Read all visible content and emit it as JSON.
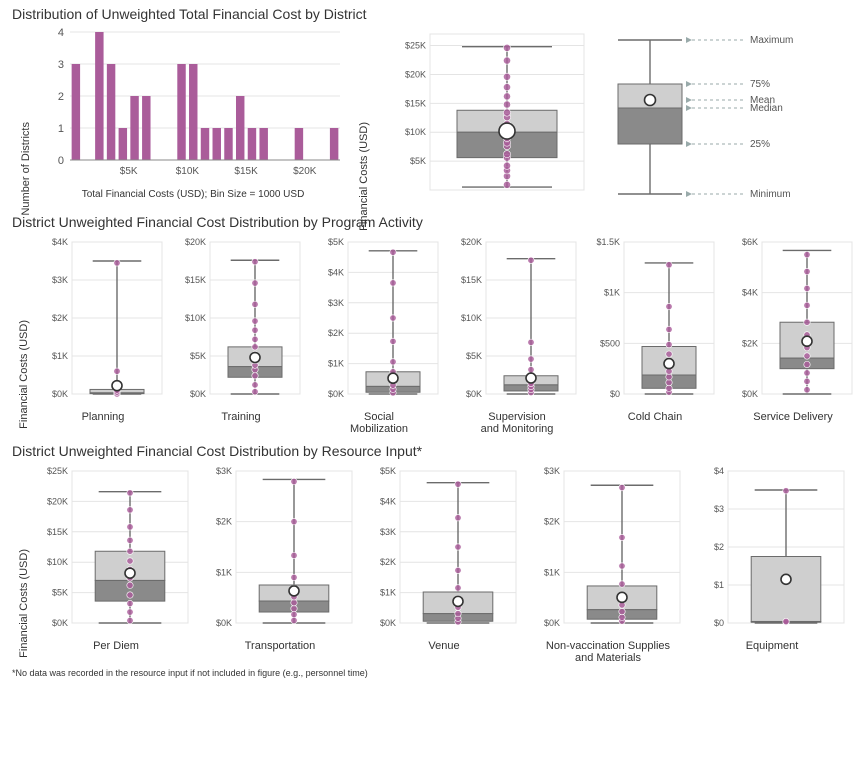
{
  "colors": {
    "accent": "#aa5c9a",
    "box_light": "#cfcfcf",
    "box_dark": "#8a8a8a",
    "whisker": "#6b6b6b",
    "axis": "#888",
    "grid": "#e4e4e4",
    "text": "#555"
  },
  "section1": {
    "title": "Distribution of Unweighted Total Financial Cost by District",
    "histogram": {
      "type": "bar",
      "ylabel": "Number of Districts",
      "xlabel": "Total Financial Costs (USD); Bin Size = 1000 USD",
      "x_ticks": [
        "",
        "$5K",
        "",
        "$10K",
        "",
        "$15K",
        "",
        "$20K",
        ""
      ],
      "y_ticks": [
        0,
        1,
        2,
        3,
        4
      ],
      "ylim": [
        0,
        4
      ],
      "values": [
        3,
        0,
        4,
        3,
        1,
        2,
        2,
        0,
        0,
        3,
        3,
        1,
        1,
        1,
        2,
        1,
        1,
        0,
        0,
        1,
        0,
        0,
        1
      ],
      "bar_color": "#aa5c9a",
      "bar_width": 0.72
    },
    "big_box": {
      "type": "boxplot",
      "ylabel": "Financial Costs (USD)",
      "y_ticks": [
        "$5K",
        "$10K",
        "$15K",
        "$20K",
        "$25K"
      ],
      "ylim": [
        0,
        27000
      ],
      "q1": 5600,
      "median": 10000,
      "q3": 13800,
      "whisker_lo": 500,
      "whisker_hi": 24800,
      "mean": 10200,
      "points": [
        900,
        2400,
        3400,
        4200,
        5600,
        6200,
        7600,
        8200,
        9000,
        10000,
        10800,
        11400,
        12600,
        13400,
        14800,
        16200,
        17800,
        19600,
        22400,
        24600
      ]
    },
    "legend": {
      "labels": {
        "max": "Maximum",
        "q75": "75%",
        "mean": "Mean",
        "median": "Median",
        "q25": "25%",
        "min": "Minimum"
      }
    }
  },
  "section2": {
    "title": "District Unweighted Financial Cost Distribution by Program Activity",
    "ylabel": "Financial Costs (USD)",
    "panels": [
      {
        "name": "Planning",
        "yticks": [
          "$0K",
          "$1K",
          "$2K",
          "$3K",
          "$4K"
        ],
        "ylim": [
          0,
          4000
        ],
        "q1": 10,
        "median": 30,
        "q3": 120,
        "lo": 0,
        "hi": 3500,
        "mean": 220,
        "points": [
          0,
          50,
          100,
          220,
          600,
          3450
        ]
      },
      {
        "name": "Training",
        "yticks": [
          "$0K",
          "$5K",
          "$10K",
          "$15K",
          "$20K"
        ],
        "ylim": [
          0,
          20000
        ],
        "q1": 2200,
        "median": 3600,
        "q3": 6200,
        "lo": 0,
        "hi": 17600,
        "mean": 4800,
        "points": [
          300,
          1200,
          2400,
          3200,
          3800,
          4400,
          5200,
          6200,
          7200,
          8400,
          9600,
          11800,
          14600,
          17400
        ]
      },
      {
        "name": "Social\nMobilization",
        "yticks": [
          "$0K",
          "$1K",
          "$2K",
          "$3K",
          "$4K",
          "$5K"
        ],
        "ylim": [
          0,
          5200
        ],
        "q1": 60,
        "median": 260,
        "q3": 760,
        "lo": 0,
        "hi": 4900,
        "mean": 540,
        "points": [
          40,
          160,
          300,
          520,
          760,
          1100,
          1800,
          2600,
          3800,
          4850
        ]
      },
      {
        "name": "Supervision\nand Monitoring",
        "yticks": [
          "$0K",
          "$5K",
          "$10K",
          "$15K",
          "$20K"
        ],
        "ylim": [
          0,
          20000
        ],
        "q1": 400,
        "median": 1200,
        "q3": 2400,
        "lo": 0,
        "hi": 17800,
        "mean": 2100,
        "points": [
          200,
          600,
          1000,
          1400,
          1800,
          2400,
          3200,
          4600,
          6800,
          17600
        ]
      },
      {
        "name": "Cold Chain",
        "yticks": [
          "$0",
          "$500",
          "$1K",
          "$1.5K"
        ],
        "ylim": [
          0,
          1600
        ],
        "q1": 60,
        "median": 200,
        "q3": 500,
        "lo": 0,
        "hi": 1380,
        "mean": 320,
        "points": [
          20,
          60,
          120,
          180,
          240,
          320,
          420,
          520,
          680,
          920,
          1360
        ]
      },
      {
        "name": "Service Delivery",
        "yticks": [
          "$0K",
          "$2K",
          "$4K",
          "$6K"
        ],
        "ylim": [
          0,
          7200
        ],
        "q1": 1200,
        "median": 1700,
        "q3": 3400,
        "lo": 0,
        "hi": 6800,
        "mean": 2500,
        "points": [
          200,
          600,
          1000,
          1400,
          1800,
          2200,
          2800,
          3400,
          4200,
          5000,
          5800,
          6600
        ]
      }
    ]
  },
  "section3": {
    "title": "District Unweighted Financial Cost Distribution by Resource Input*",
    "ylabel": "Financial Costs (USD)",
    "panels": [
      {
        "name": "Per Diem",
        "yticks": [
          "$0K",
          "$5K",
          "$10K",
          "$15K",
          "$20K",
          "$25K"
        ],
        "ylim": [
          0,
          25000
        ],
        "q1": 3600,
        "median": 7000,
        "q3": 11800,
        "lo": 0,
        "hi": 21600,
        "mean": 8200,
        "points": [
          400,
          1800,
          3200,
          4600,
          6200,
          7400,
          8800,
          10200,
          11800,
          13600,
          15800,
          18600,
          21400
        ]
      },
      {
        "name": "Transportation",
        "yticks": [
          "$0K",
          "$1K",
          "$2K",
          "$3K"
        ],
        "ylim": [
          0,
          3600
        ],
        "q1": 260,
        "median": 520,
        "q3": 900,
        "lo": 0,
        "hi": 3400,
        "mean": 760,
        "points": [
          60,
          200,
          340,
          480,
          620,
          820,
          1080,
          1600,
          2400,
          3350
        ]
      },
      {
        "name": "Venue",
        "yticks": [
          "$0K",
          "$1K",
          "$2K",
          "$3K",
          "$4K",
          "$5K"
        ],
        "ylim": [
          0,
          5200
        ],
        "q1": 60,
        "median": 320,
        "q3": 1060,
        "lo": 0,
        "hi": 4800,
        "mean": 740,
        "points": [
          40,
          160,
          320,
          540,
          820,
          1200,
          1800,
          2600,
          3600,
          4750
        ]
      },
      {
        "name": "Non-vaccination Supplies\nand Materials",
        "yticks": [
          "$0K",
          "$1K",
          "$2K",
          "$3K"
        ],
        "ylim": [
          0,
          3200
        ],
        "q1": 80,
        "median": 280,
        "q3": 780,
        "lo": 0,
        "hi": 2900,
        "mean": 540,
        "points": [
          40,
          120,
          240,
          380,
          560,
          820,
          1200,
          1800,
          2850
        ]
      },
      {
        "name": "Equipment",
        "yticks": [
          "$0",
          "$1",
          "$2",
          "$3",
          "$4"
        ],
        "ylim": [
          0,
          4
        ],
        "q1": 0.02,
        "median": 0.04,
        "q3": 1.75,
        "lo": 0,
        "hi": 3.5,
        "mean": 1.15,
        "points": [
          0.02,
          0.04,
          3.48
        ]
      }
    ]
  },
  "footnote": "*No data was recorded in the resource input if not included in figure (e.g., personnel time)"
}
